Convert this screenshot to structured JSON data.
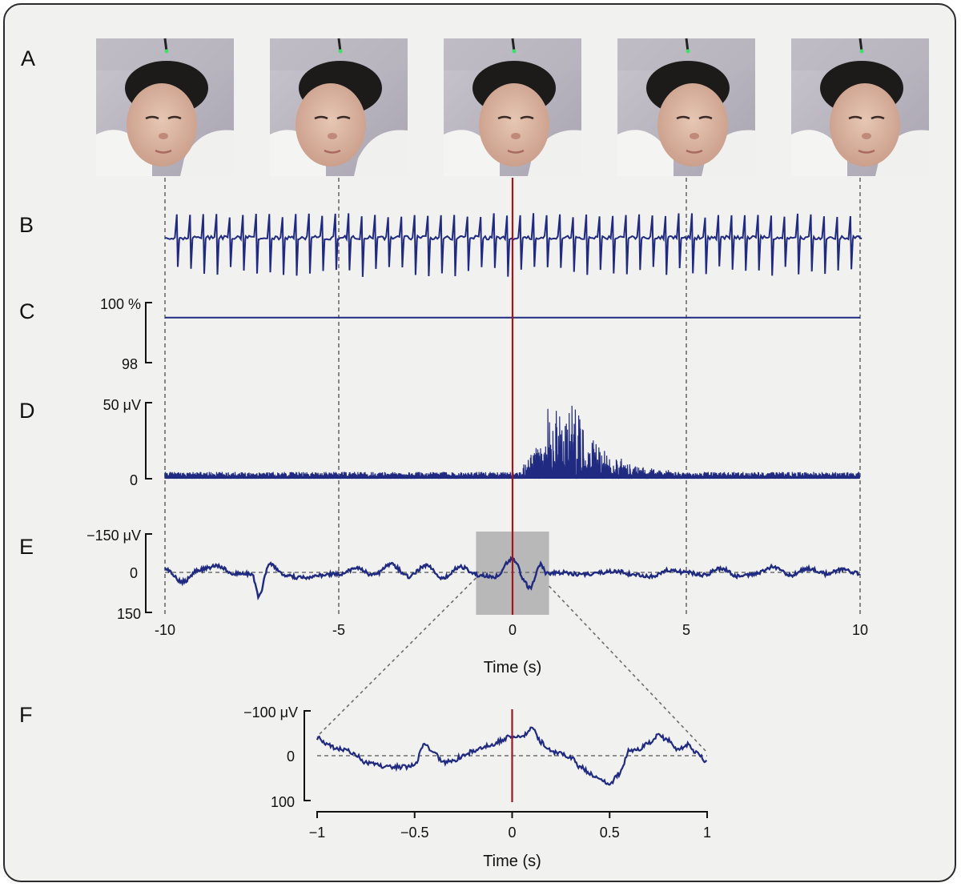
{
  "colors": {
    "signal": "#1f2a80",
    "event_line": "#a3171b",
    "guide_line": "#6d6d6d",
    "highlight": "#b8b8b8",
    "background": "#f1f1f0"
  },
  "chart_data": [
    {
      "panel": "A",
      "type": "image-strip",
      "images": [
        "infant-photo-t-10",
        "infant-photo-t-5",
        "infant-photo-t0",
        "infant-photo-t5",
        "infant-photo-t10"
      ],
      "image_times": [
        -10,
        -5,
        0,
        5,
        10
      ]
    },
    {
      "panel": "B",
      "type": "line",
      "xlim": [
        -10,
        10
      ],
      "series": [
        {
          "values_description": ""
        }
      ],
      "beat_interval_s": 0.38,
      "beat_times_range": [
        -9.8,
        9.8
      ]
    },
    {
      "panel": "C",
      "type": "line",
      "xlim": [
        -10,
        10
      ],
      "ylim": [
        98,
        100
      ],
      "y_ticks": [
        {
          "value": 100,
          "label": "100 %"
        },
        {
          "value": 98,
          "label": "98"
        }
      ],
      "x": [
        -10,
        10
      ],
      "values": [
        99.5,
        99.5
      ]
    },
    {
      "panel": "D",
      "type": "line",
      "xlim": [
        -10,
        10
      ],
      "ylim": [
        0,
        50
      ],
      "y_ticks": [
        {
          "value": 50,
          "label": "50 μV"
        },
        {
          "value": 0,
          "label": "0"
        }
      ],
      "baseline_amplitude_uv": 3,
      "burst": {
        "start_s": 0.3,
        "peak_s": 1.2,
        "peak_uv": 48,
        "end_s": 4.5
      }
    },
    {
      "panel": "E",
      "type": "line",
      "xlim": [
        -10,
        10
      ],
      "ylim": [
        150,
        -150
      ],
      "y_ticks": [
        {
          "value": -150,
          "label": "−150 μV"
        },
        {
          "value": 0,
          "label": "0"
        },
        {
          "value": 150,
          "label": "150"
        }
      ],
      "x_ticks": [
        {
          "value": -10,
          "label": "-10"
        },
        {
          "value": -5,
          "label": "-5"
        },
        {
          "value": 0,
          "label": "0"
        },
        {
          "value": 5,
          "label": "5"
        },
        {
          "value": 10,
          "label": "10"
        }
      ],
      "xlabel": "Time (s)",
      "highlight_range": [
        -1,
        1
      ],
      "x": [
        -10,
        -9.5,
        -9.0,
        -8.5,
        -8.0,
        -7.5,
        -7.3,
        -7.0,
        -6.5,
        -6.0,
        -5.5,
        -5.0,
        -4.5,
        -4.0,
        -3.5,
        -3.0,
        -2.5,
        -2.0,
        -1.5,
        -1.0,
        -0.5,
        0.0,
        0.1,
        0.3,
        0.5,
        0.8,
        1.0,
        1.5,
        2.0,
        2.5,
        3.0,
        3.5,
        4.0,
        4.5,
        5.0,
        5.5,
        6.0,
        6.5,
        7.0,
        7.5,
        8.0,
        8.5,
        9.0,
        9.5,
        10.0
      ],
      "values": [
        -15,
        35,
        -10,
        -25,
        5,
        5,
        90,
        -30,
        15,
        20,
        10,
        5,
        -15,
        10,
        -30,
        15,
        -25,
        20,
        -20,
        10,
        15,
        -50,
        -40,
        25,
        60,
        -30,
        5,
        0,
        10,
        0,
        -5,
        10,
        15,
        -10,
        0,
        10,
        -15,
        15,
        5,
        -20,
        10,
        -15,
        5,
        -10,
        5
      ]
    },
    {
      "panel": "F",
      "type": "line",
      "xlim": [
        -1,
        1
      ],
      "ylim": [
        100,
        -100
      ],
      "y_ticks": [
        {
          "value": -100,
          "label": "−100 μV"
        },
        {
          "value": 0,
          "label": "0"
        },
        {
          "value": 100,
          "label": "100"
        }
      ],
      "x_ticks": [
        {
          "value": -1,
          "label": "−1"
        },
        {
          "value": -0.5,
          "label": "−0.5"
        },
        {
          "value": 0,
          "label": "0"
        },
        {
          "value": 0.5,
          "label": "0.5"
        },
        {
          "value": 1,
          "label": "1"
        }
      ],
      "xlabel": "Time (s)",
      "x": [
        -1.0,
        -0.95,
        -0.9,
        -0.85,
        -0.8,
        -0.75,
        -0.7,
        -0.65,
        -0.6,
        -0.55,
        -0.5,
        -0.45,
        -0.4,
        -0.35,
        -0.3,
        -0.25,
        -0.2,
        -0.15,
        -0.1,
        -0.05,
        0.0,
        0.05,
        0.1,
        0.15,
        0.2,
        0.25,
        0.3,
        0.35,
        0.4,
        0.45,
        0.5,
        0.55,
        0.6,
        0.65,
        0.7,
        0.75,
        0.8,
        0.85,
        0.9,
        0.95,
        1.0
      ],
      "values": [
        -40,
        -25,
        -15,
        -15,
        0,
        15,
        20,
        25,
        25,
        25,
        20,
        -25,
        -5,
        15,
        10,
        0,
        -10,
        -20,
        -25,
        -35,
        -45,
        -45,
        -60,
        -30,
        -10,
        -5,
        5,
        25,
        40,
        55,
        65,
        40,
        -10,
        -15,
        -30,
        -45,
        -35,
        -15,
        -25,
        -5,
        15
      ]
    }
  ],
  "panel_labels": [
    "A",
    "B",
    "C",
    "D",
    "E",
    "F"
  ]
}
